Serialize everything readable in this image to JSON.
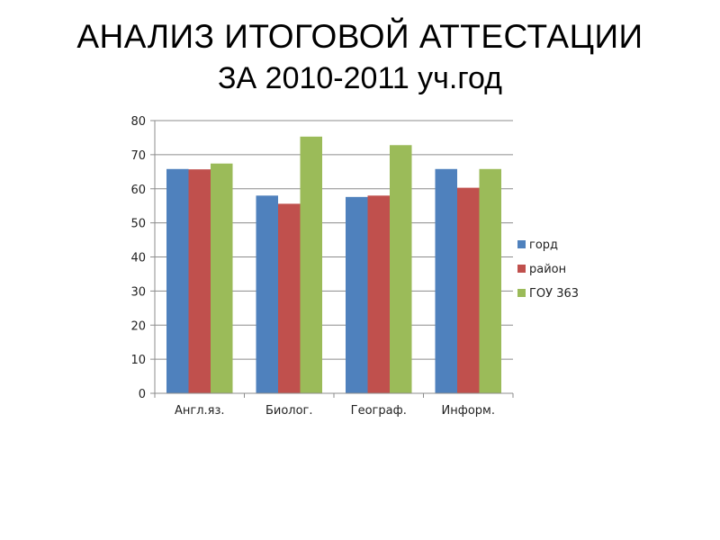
{
  "slide": {
    "title_line1": "АНАЛИЗ ИТОГОВОЙ АТТЕСТАЦИИ",
    "title_line2": "ЗА 2010-2011 уч.год"
  },
  "chart_data": {
    "type": "bar",
    "categories": [
      "Англ.яз.",
      "Биолог.",
      "Географ.",
      "Информ."
    ],
    "series": [
      {
        "name": "горд",
        "color": "#4F81BD",
        "values": [
          65.8,
          58.0,
          57.6,
          65.8
        ]
      },
      {
        "name": "район",
        "color": "#C0504D",
        "values": [
          65.7,
          55.6,
          58.0,
          60.3
        ]
      },
      {
        "name": "ГОУ 363",
        "color": "#9BBB59",
        "values": [
          67.4,
          75.3,
          72.8,
          65.8
        ]
      }
    ],
    "ylim": [
      0,
      80
    ],
    "yticks": [
      0,
      10,
      20,
      30,
      40,
      50,
      60,
      70,
      80
    ],
    "grid": true,
    "legend": "right"
  }
}
